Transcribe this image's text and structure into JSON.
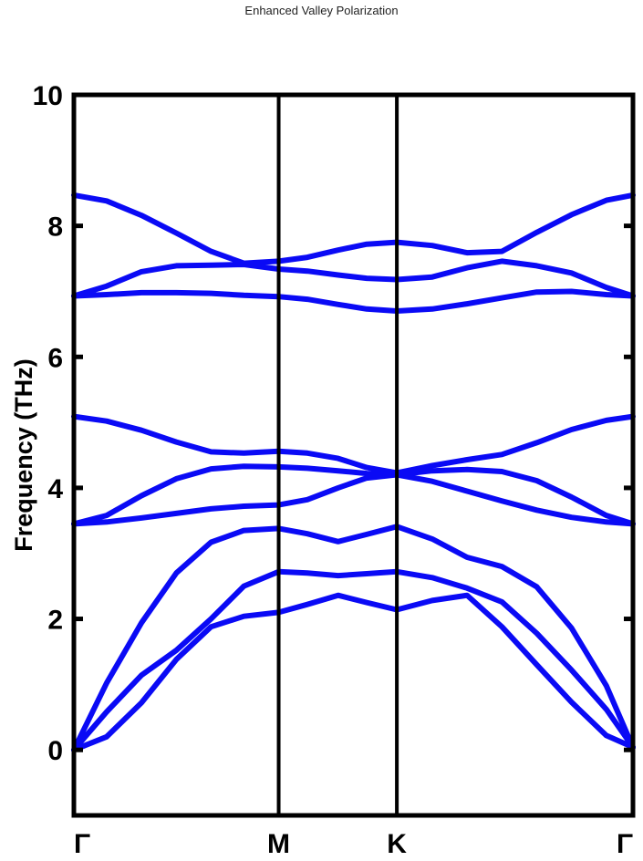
{
  "page": {
    "title": "Enhanced Valley Polarization"
  },
  "chart_data": {
    "type": "line",
    "title": "Enhanced Valley Polarization",
    "xlabel": "",
    "ylabel": "Frequency (THz)",
    "ylim": [
      -1,
      10
    ],
    "yticks": [
      0,
      2,
      4,
      6,
      8,
      10
    ],
    "x_points": [
      {
        "label": "Γ",
        "pos": 0
      },
      {
        "label": "M",
        "pos": 1
      },
      {
        "label": "K",
        "pos": 1.577
      },
      {
        "label": "Γ",
        "pos": 2.73
      }
    ],
    "line_color": "#0A0AF5",
    "x": [
      0,
      0.16,
      0.33,
      0.5,
      0.67,
      0.83,
      1.0,
      1.14,
      1.29,
      1.43,
      1.577,
      1.75,
      1.92,
      2.09,
      2.26,
      2.43,
      2.6,
      2.73
    ],
    "series": [
      {
        "values": [
          0.0,
          0.2,
          0.72,
          1.38,
          1.88,
          2.04,
          2.1,
          2.22,
          2.36,
          2.25,
          2.14,
          2.28,
          2.36,
          1.88,
          1.3,
          0.73,
          0.22,
          0.04
        ]
      },
      {
        "values": [
          0.0,
          0.58,
          1.14,
          1.52,
          2.0,
          2.5,
          2.72,
          2.7,
          2.66,
          2.69,
          2.72,
          2.63,
          2.47,
          2.26,
          1.78,
          1.22,
          0.62,
          0.04
        ]
      },
      {
        "values": [
          0.0,
          1.02,
          1.94,
          2.7,
          3.17,
          3.35,
          3.38,
          3.3,
          3.18,
          3.29,
          3.41,
          3.22,
          2.94,
          2.8,
          2.49,
          1.86,
          0.98,
          0.04
        ]
      },
      {
        "values": [
          3.45,
          3.48,
          3.54,
          3.61,
          3.68,
          3.72,
          3.74,
          3.82,
          4.0,
          4.15,
          4.2,
          4.1,
          3.95,
          3.8,
          3.66,
          3.55,
          3.48,
          3.45
        ]
      },
      {
        "values": [
          3.45,
          3.58,
          3.88,
          4.14,
          4.29,
          4.33,
          4.32,
          4.3,
          4.26,
          4.22,
          4.2,
          4.26,
          4.28,
          4.25,
          4.11,
          3.86,
          3.58,
          3.45
        ]
      },
      {
        "values": [
          5.09,
          5.02,
          4.88,
          4.7,
          4.55,
          4.53,
          4.56,
          4.53,
          4.45,
          4.31,
          4.23,
          4.34,
          4.43,
          4.51,
          4.69,
          4.89,
          5.03,
          5.09
        ]
      },
      {
        "values": [
          6.93,
          6.95,
          6.98,
          6.98,
          6.97,
          6.94,
          6.92,
          6.88,
          6.8,
          6.73,
          6.7,
          6.73,
          6.81,
          6.9,
          6.99,
          7.0,
          6.95,
          6.93
        ]
      },
      {
        "values": [
          6.93,
          7.08,
          7.3,
          7.39,
          7.4,
          7.41,
          7.34,
          7.31,
          7.25,
          7.2,
          7.18,
          7.22,
          7.36,
          7.46,
          7.39,
          7.28,
          7.06,
          6.93
        ]
      },
      {
        "values": [
          8.47,
          8.38,
          8.16,
          7.89,
          7.61,
          7.43,
          7.46,
          7.52,
          7.63,
          7.72,
          7.75,
          7.7,
          7.59,
          7.61,
          7.9,
          8.17,
          8.39,
          8.47
        ]
      }
    ]
  }
}
